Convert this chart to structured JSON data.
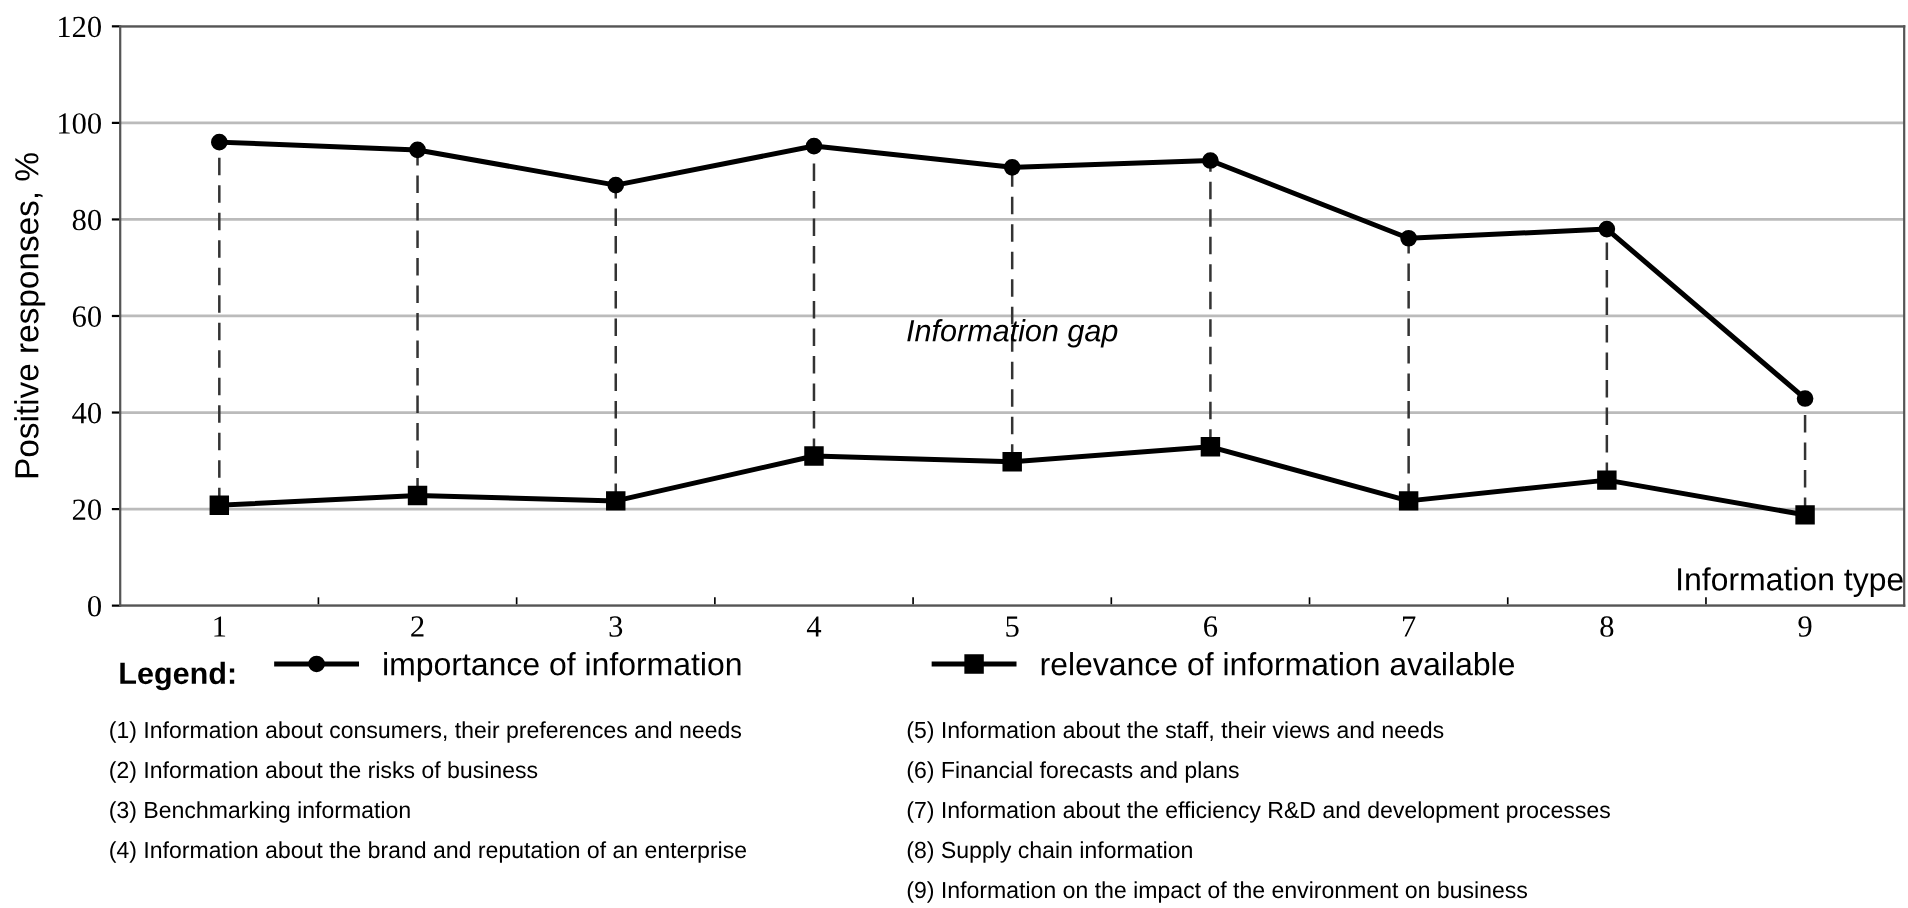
{
  "chart_data": {
    "type": "line",
    "ylabel": "Positive responses, %",
    "xlabel": "Information type",
    "legend_title": "Legend:",
    "categories": [
      "1",
      "2",
      "3",
      "4",
      "5",
      "6",
      "7",
      "8",
      "9"
    ],
    "series": [
      {
        "name": "importance of information",
        "color": "#000000",
        "marker": "circle",
        "values": [
          96,
          94.4,
          87.1,
          95.2,
          90.8,
          92.2,
          76.1,
          78,
          42.9
        ]
      },
      {
        "name": "relevance of information available",
        "color": "#000000",
        "marker": "square",
        "values": [
          20.8,
          22.8,
          21.7,
          31,
          29.8,
          32.9,
          21.7,
          26,
          18.8
        ],
        "errors": [
          [
            20.8,
            96
          ],
          [
            22.8,
            94.4
          ],
          [
            21.7,
            87.1
          ],
          [
            31,
            95.2
          ],
          [
            29.8,
            90.8
          ],
          [
            32.9,
            92.2
          ],
          [
            21.7,
            76.1
          ],
          [
            26,
            78
          ],
          [
            18.8,
            42.9
          ]
        ]
      }
    ],
    "ylim": [
      0,
      120
    ],
    "yticks": [
      0,
      20,
      40,
      60,
      80,
      100,
      120
    ],
    "grid": "y",
    "legend": "bottom",
    "line_style": "solid",
    "annotations": [
      "Information gap",
      "(1) Information about consumers, their preferences and needs",
      "(2) Information about the risks of business",
      "(3) Benchmarking information",
      "(4) Information about the brand and reputation of an enterprise",
      "(5) Information about the staff, their views and needs",
      "(6) Financial forecasts and plans",
      "(7) Information about the efficiency R&D and development processes",
      "(8) Supply chain information",
      "(9) Information on the impact of the environment on business"
    ]
  }
}
